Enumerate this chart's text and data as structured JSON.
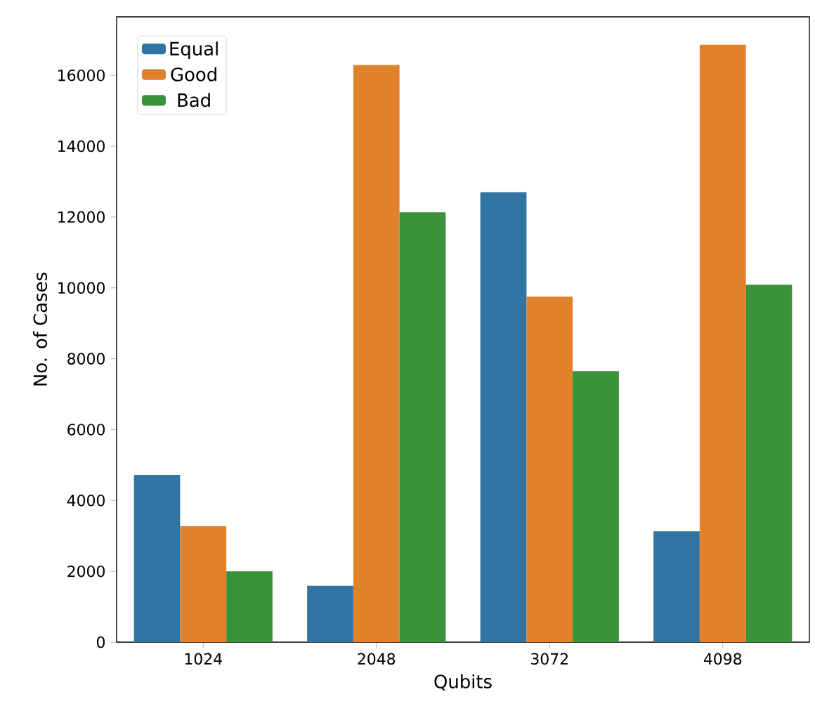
{
  "chart_data": {
    "type": "bar",
    "xlabel": "Qubits",
    "ylabel": "No. of Cases",
    "categories": [
      "1024",
      "2048",
      "3072",
      "4098"
    ],
    "series": [
      {
        "name": "Equal",
        "color": "#3274a1",
        "values": [
          4720,
          1590,
          12700,
          3130
        ]
      },
      {
        "name": "Good",
        "color": "#e1812c",
        "values": [
          3270,
          16290,
          9750,
          16860
        ]
      },
      {
        "name": "Bad",
        "color": "#3a923a",
        "values": [
          2000,
          12130,
          7650,
          10090
        ]
      }
    ],
    "ylim": [
      0,
      17650
    ],
    "yticks": [
      0,
      2000,
      4000,
      6000,
      8000,
      10000,
      12000,
      14000,
      16000
    ],
    "grid": false,
    "legend": "top left"
  }
}
